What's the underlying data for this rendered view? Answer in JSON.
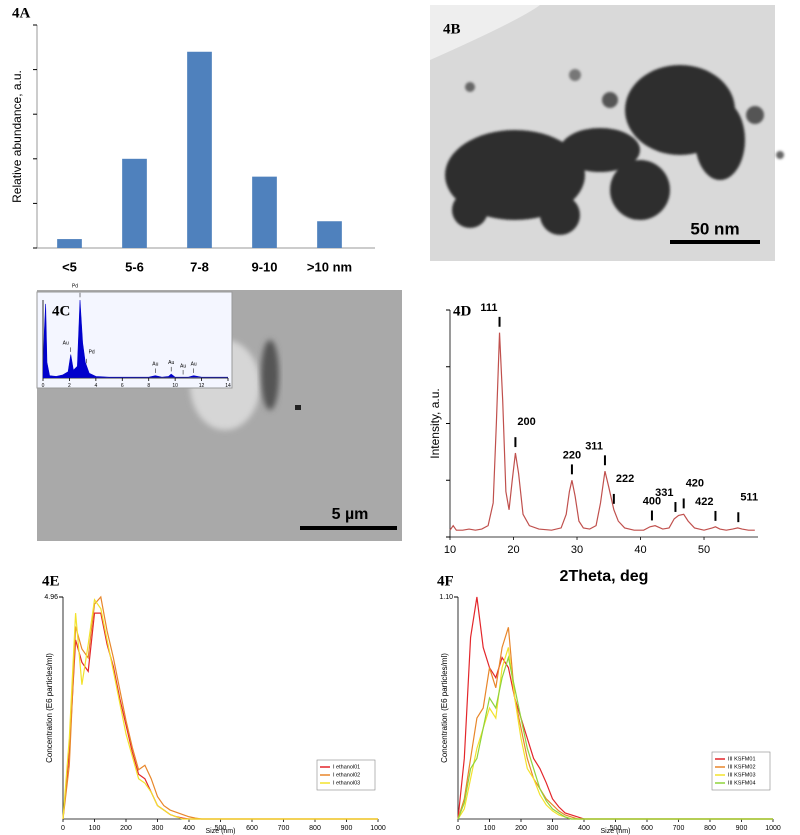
{
  "chart_data": [
    {
      "type": "bar",
      "title": "4A",
      "ylabel": "Relative abundance, a.u.",
      "categories": [
        "<5",
        "5-6",
        "7-8",
        "9-10",
        ">10 nm"
      ],
      "values": [
        0.2,
        2.0,
        4.4,
        1.6,
        0.6
      ],
      "color": "#4f81bd",
      "ylim": [
        0,
        5
      ],
      "yticks": [
        0,
        1,
        2,
        3,
        4,
        5
      ],
      "tick_labels": false
    },
    {
      "type": "line",
      "area": true,
      "color": "#0000cc",
      "x": [
        0,
        0.1,
        0.2,
        0.3,
        0.5,
        1,
        1.5,
        1.9,
        2.1,
        2.3,
        2.6,
        2.8,
        3.0,
        3.2,
        3.5,
        4,
        5,
        6,
        7,
        8,
        8.5,
        9,
        9.5,
        9.7,
        10,
        11,
        11.4,
        12,
        13,
        14
      ],
      "values": [
        0,
        60,
        95,
        20,
        3,
        2,
        4,
        8,
        30,
        10,
        15,
        100,
        45,
        20,
        6,
        2,
        1,
        1,
        1,
        1,
        3,
        1,
        2,
        5,
        1,
        1,
        3,
        1,
        1,
        1
      ],
      "xlim": [
        0,
        14
      ],
      "xticks": [
        0,
        2,
        4,
        6,
        8,
        10,
        12,
        14
      ],
      "ylim": [
        0,
        100
      ],
      "annotations": [
        {
          "text": "Au",
          "x": 2.1
        },
        {
          "text": "Pd",
          "x": 2.8
        },
        {
          "text": "Pd",
          "x": 3.3
        },
        {
          "text": "Au",
          "x": 8.5
        },
        {
          "text": "Au",
          "x": 9.7
        },
        {
          "text": "Au",
          "x": 10.6
        },
        {
          "text": "Au",
          "x": 11.4
        }
      ]
    },
    {
      "type": "line",
      "title": "4D",
      "xlabel": "2Theta, deg",
      "ylabel": "Intensity, a.u.",
      "color": "#c0504d",
      "x": [
        10,
        10.5,
        11,
        12,
        13,
        14,
        15,
        16,
        16.8,
        17.3,
        17.8,
        18.3,
        18.8,
        19.3,
        19.8,
        20.3,
        20.8,
        21.5,
        22.5,
        24,
        26,
        27.5,
        28.3,
        28.8,
        29.2,
        29.7,
        30.3,
        31,
        32,
        33,
        33.7,
        34.4,
        35,
        35.8,
        36.5,
        37.5,
        39,
        40.5,
        41.5,
        42.3,
        43.5,
        44.5,
        45.3,
        46,
        46.8,
        47.5,
        48.5,
        50,
        51.3,
        51.8,
        52.5,
        53.5,
        54.5,
        55.3,
        56,
        57,
        58
      ],
      "values": [
        3,
        5,
        3,
        3,
        3.5,
        3,
        3.5,
        5,
        15,
        50,
        90,
        60,
        20,
        12,
        25,
        37,
        28,
        10,
        5,
        3.5,
        3,
        4,
        10,
        20,
        25,
        18,
        7,
        4,
        3.5,
        5,
        15,
        29,
        22,
        12,
        7,
        4,
        3,
        3,
        4.5,
        5,
        3.5,
        4,
        8,
        9.5,
        10,
        7,
        4,
        3,
        4,
        4.5,
        3.5,
        3,
        3.5,
        4,
        3.5,
        3,
        3
      ],
      "xlim": [
        10,
        58.5
      ],
      "xticks": [
        10,
        20,
        30,
        40,
        50
      ],
      "ylim": [
        0,
        100
      ],
      "yticks": [
        0,
        25,
        50,
        75,
        100
      ],
      "tick_labels_y": false,
      "annotations": [
        {
          "text": "111",
          "x": 17.8
        },
        {
          "text": "200",
          "x": 20.3
        },
        {
          "text": "220",
          "x": 29.2
        },
        {
          "text": "311",
          "x": 34.4
        },
        {
          "text": "222",
          "x": 35.8
        },
        {
          "text": "400",
          "x": 41.8
        },
        {
          "text": "331",
          "x": 45.5
        },
        {
          "text": "420",
          "x": 46.8
        },
        {
          "text": "422",
          "x": 51.8
        },
        {
          "text": "511",
          "x": 55.4
        }
      ]
    },
    {
      "type": "line",
      "title": "4E",
      "xlabel": "Size (nm)",
      "ylabel": "Concentration (E6 particles/ml)",
      "x": [
        0,
        20,
        40,
        60,
        80,
        100,
        120,
        140,
        160,
        180,
        200,
        220,
        240,
        260,
        280,
        300,
        320,
        340,
        360,
        380,
        400,
        420,
        440,
        460,
        480,
        500,
        600,
        700,
        800,
        900,
        1000
      ],
      "series": [
        {
          "name": "I ethanol01",
          "color": "#e3262b",
          "values": [
            0,
            1.5,
            4.0,
            3.5,
            3.3,
            4.6,
            4.6,
            3.9,
            3.4,
            2.7,
            2.1,
            1.5,
            1.0,
            0.9,
            0.6,
            0.3,
            0.2,
            0.1,
            0.05,
            0.02,
            0,
            0,
            0,
            0,
            0,
            0,
            0,
            0,
            0,
            0,
            0
          ]
        },
        {
          "name": "I ethanol02",
          "color": "#e8862a",
          "values": [
            0,
            1.2,
            4.3,
            3.8,
            3.6,
            4.8,
            4.96,
            4.2,
            3.6,
            2.9,
            2.2,
            1.6,
            1.1,
            1.2,
            0.9,
            0.5,
            0.3,
            0.2,
            0.15,
            0.1,
            0.05,
            0.02,
            0,
            0,
            0,
            0,
            0,
            0,
            0,
            0,
            0
          ]
        },
        {
          "name": "I ethanol03",
          "color": "#f2e22c",
          "values": [
            0,
            1.8,
            4.6,
            3.0,
            3.9,
            4.9,
            4.7,
            4.0,
            3.3,
            2.6,
            1.9,
            1.4,
            0.9,
            0.8,
            0.6,
            0.3,
            0.2,
            0.1,
            0.05,
            0,
            0,
            0,
            0,
            0,
            0,
            0,
            0,
            0,
            0,
            0,
            0
          ]
        }
      ],
      "xlim": [
        0,
        1000
      ],
      "xticks": [
        0,
        100,
        200,
        300,
        400,
        500,
        600,
        700,
        800,
        900,
        1000
      ],
      "ylim": [
        0,
        4.96
      ],
      "yticks": [
        4.96
      ],
      "legend": "lower right"
    },
    {
      "type": "line",
      "title": "4F",
      "xlabel": "Size (nm)",
      "ylabel": "Concentration (E6 particles/ml)",
      "x": [
        0,
        20,
        40,
        60,
        80,
        100,
        120,
        140,
        160,
        180,
        200,
        220,
        240,
        260,
        280,
        300,
        320,
        340,
        360,
        380,
        400,
        420,
        440,
        460,
        480,
        500,
        600,
        700,
        800,
        900,
        1000
      ],
      "series": [
        {
          "name": "III KSFM01",
          "color": "#e3262b",
          "values": [
            0,
            0.3,
            0.9,
            1.1,
            0.85,
            0.75,
            0.7,
            0.8,
            0.75,
            0.6,
            0.5,
            0.4,
            0.3,
            0.25,
            0.18,
            0.1,
            0.06,
            0.03,
            0.02,
            0.01,
            0,
            0,
            0,
            0,
            0,
            0,
            0,
            0,
            0,
            0,
            0
          ]
        },
        {
          "name": "III KSFM02",
          "color": "#e8862a",
          "values": [
            0,
            0.1,
            0.3,
            0.5,
            0.55,
            0.75,
            0.65,
            0.85,
            0.95,
            0.6,
            0.45,
            0.3,
            0.2,
            0.15,
            0.1,
            0.07,
            0.04,
            0.02,
            0.01,
            0,
            0,
            0,
            0,
            0,
            0,
            0,
            0,
            0,
            0,
            0,
            0
          ]
        },
        {
          "name": "III KSFM03",
          "color": "#f2e22c",
          "values": [
            0,
            0.05,
            0.2,
            0.35,
            0.45,
            0.55,
            0.5,
            0.75,
            0.85,
            0.6,
            0.4,
            0.25,
            0.2,
            0.12,
            0.07,
            0.04,
            0.02,
            0.01,
            0,
            0,
            0,
            0,
            0,
            0,
            0,
            0,
            0,
            0,
            0,
            0,
            0
          ]
        },
        {
          "name": "III KSFM04",
          "color": "#8fd43b",
          "values": [
            0,
            0.08,
            0.25,
            0.3,
            0.45,
            0.6,
            0.55,
            0.7,
            0.8,
            0.65,
            0.5,
            0.35,
            0.25,
            0.15,
            0.09,
            0.05,
            0.03,
            0.01,
            0,
            0,
            0,
            0,
            0,
            0,
            0,
            0,
            0,
            0,
            0,
            0,
            0
          ]
        }
      ],
      "xlim": [
        0,
        1000
      ],
      "xticks": [
        0,
        100,
        200,
        300,
        400,
        500,
        600,
        700,
        800,
        900,
        1000
      ],
      "ylim": [
        0,
        1.1
      ],
      "yticks": [
        {
          "value": 1.1,
          "label": "1.10"
        }
      ],
      "legend": "lower right"
    }
  ],
  "images": [
    {
      "label": "4B",
      "scale_bar": "50 nm"
    },
    {
      "label": "4C",
      "scale_bar": "5 µm"
    }
  ]
}
